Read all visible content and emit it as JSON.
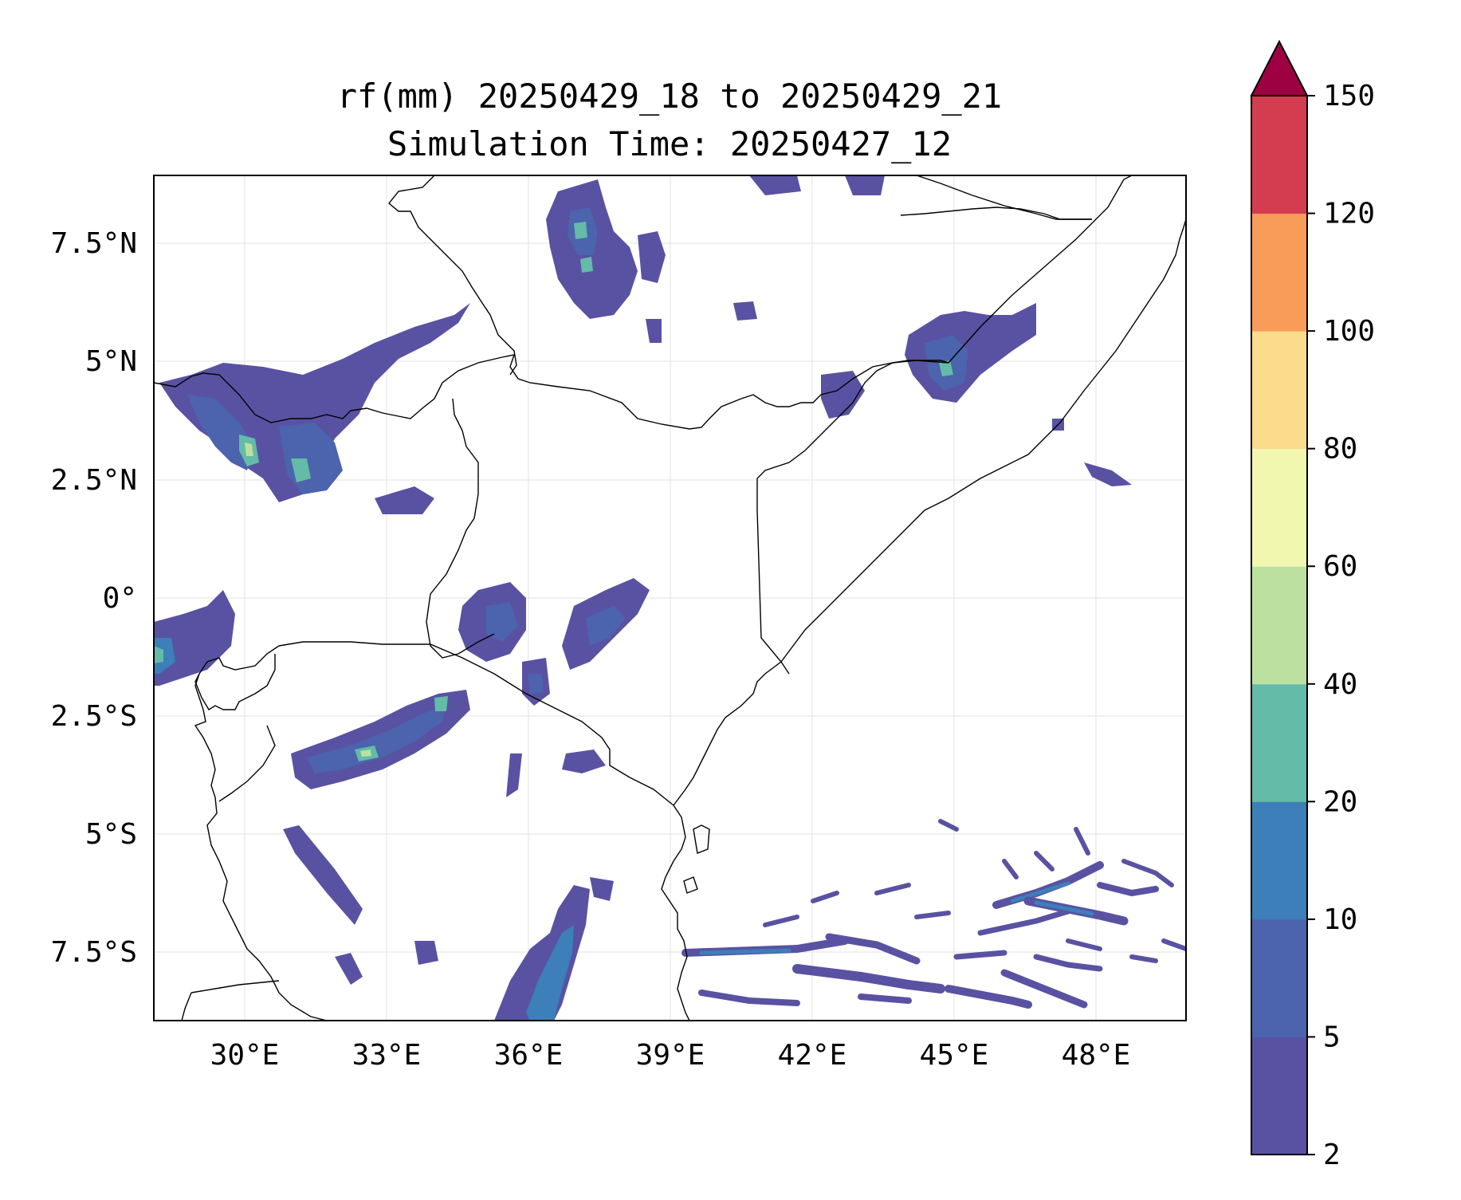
{
  "title": {
    "line1": "rf(mm) 20250429_18 to 20250429_21",
    "line2": "Simulation Time: 20250427_12"
  },
  "map": {
    "lat_ticks": [
      "7.5°N",
      "5°N",
      "2.5°N",
      "0°",
      "2.5°S",
      "5°S",
      "7.5°S"
    ],
    "lon_ticks": [
      "30°E",
      "33°E",
      "36°E",
      "39°E",
      "42°E",
      "45°E",
      "48°E"
    ],
    "gridlines": true,
    "background_color": "#ffffff",
    "border_color": "#000000"
  },
  "colorbar": {
    "extend": "max",
    "tick_labels": [
      "2",
      "5",
      "10",
      "20",
      "40",
      "60",
      "80",
      "100",
      "120",
      "150"
    ],
    "colors": [
      "#5952a2",
      "#4c63ad",
      "#3c7fb9",
      "#63bba8",
      "#bbe0a0",
      "#f2f7b0",
      "#fbdc8c",
      "#f99c59",
      "#d43d4f",
      "#9e0142"
    ]
  },
  "rain_colors": {
    "2_5": "#5952a2",
    "5_10": "#4c63ad",
    "10_20": "#3c7fb9",
    "20_40": "#63bba8",
    "40_60": "#bbe0a0"
  }
}
